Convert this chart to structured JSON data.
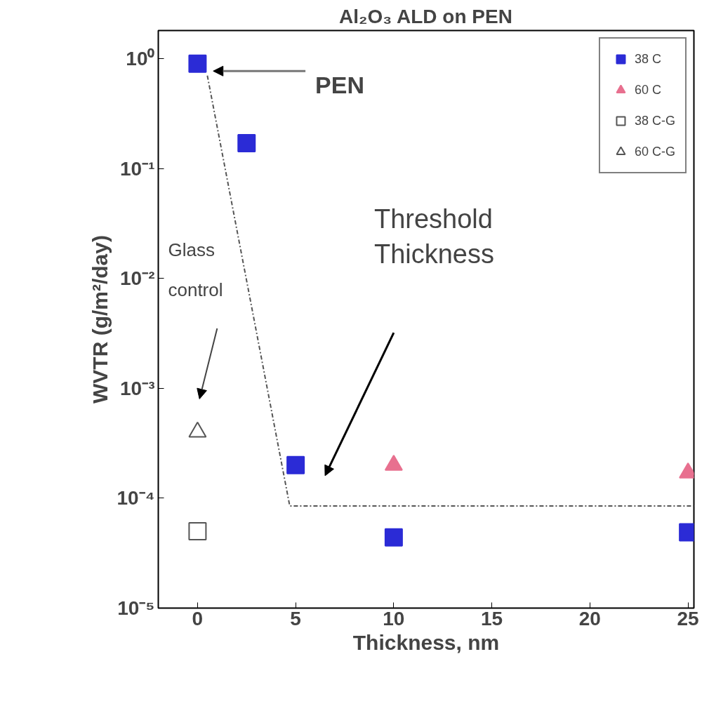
{
  "chart_data": {
    "type": "scatter",
    "title": "Al₂O₃ ALD on PEN",
    "xlabel": "Thickness, nm",
    "ylabel": "WVTR (g/m²/day)",
    "log": "y",
    "grid": false,
    "legend": "top right",
    "xlim": [
      -2,
      25.3
    ],
    "ylim": [
      1e-05,
      1.8
    ],
    "xticks": [
      0,
      5,
      10,
      15,
      20,
      25
    ],
    "yticks": [
      {
        "value": 1e-05,
        "label": "10⁻⁵"
      },
      {
        "value": 0.0001,
        "label": "10⁻⁴"
      },
      {
        "value": 0.001,
        "label": "10⁻³"
      },
      {
        "value": 0.01,
        "label": "10⁻²"
      },
      {
        "value": 0.1,
        "label": "10⁻¹"
      },
      {
        "value": 1,
        "label": "10⁰"
      }
    ],
    "series": [
      {
        "name": "38 C",
        "color": "#2b2bd6",
        "marker": "square",
        "x": [
          0,
          2.5,
          5,
          10,
          25
        ],
        "values": [
          0.9,
          0.17,
          0.0002,
          4.4e-05,
          4.9e-05
        ]
      },
      {
        "name": "60 C",
        "color": "#e8708f",
        "marker": "triangle",
        "x": [
          10,
          25
        ],
        "values": [
          0.0002,
          0.00017
        ]
      },
      {
        "name": "38 C-G",
        "color": "#555555",
        "marker": "square-open",
        "x": [
          0
        ],
        "values": [
          5e-05
        ]
      },
      {
        "name": "60 C-G",
        "color": "#555555",
        "marker": "triangle-open",
        "x": [
          0
        ],
        "values": [
          0.0004
        ]
      },
      {
        "type": "line",
        "color": "#555555",
        "line_style": "dashed",
        "x": [
          0.5,
          4.7,
          25.3
        ],
        "values": [
          0.7,
          8.5e-05,
          8.5e-05
        ]
      }
    ],
    "annotations": [
      "PEN",
      "Threshold\nThickness",
      "Glass\ncontrol"
    ]
  }
}
